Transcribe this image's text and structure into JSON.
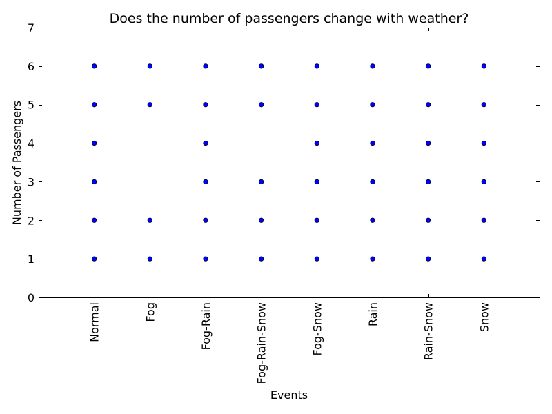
{
  "chart_data": {
    "type": "scatter",
    "title": "Does the number of passengers change with weather?",
    "xlabel": "Events",
    "ylabel": "Number of Passengers",
    "categories": [
      "Normal",
      "Fog",
      "Fog-Rain",
      "Fog-Rain-Snow",
      "Fog-Snow",
      "Rain",
      "Rain-Snow",
      "Snow"
    ],
    "x_range_slots": [
      0,
      9
    ],
    "ylim": [
      0,
      7
    ],
    "yticks": [
      0,
      1,
      2,
      3,
      4,
      5,
      6,
      7
    ],
    "grid": false,
    "marker_color": "#0000ff",
    "points": [
      {
        "x": "Normal",
        "y": 1
      },
      {
        "x": "Normal",
        "y": 2
      },
      {
        "x": "Normal",
        "y": 3
      },
      {
        "x": "Normal",
        "y": 4
      },
      {
        "x": "Normal",
        "y": 5
      },
      {
        "x": "Normal",
        "y": 6
      },
      {
        "x": "Fog",
        "y": 1
      },
      {
        "x": "Fog",
        "y": 2
      },
      {
        "x": "Fog",
        "y": 5
      },
      {
        "x": "Fog",
        "y": 6
      },
      {
        "x": "Fog-Rain",
        "y": 1
      },
      {
        "x": "Fog-Rain",
        "y": 2
      },
      {
        "x": "Fog-Rain",
        "y": 3
      },
      {
        "x": "Fog-Rain",
        "y": 4
      },
      {
        "x": "Fog-Rain",
        "y": 5
      },
      {
        "x": "Fog-Rain",
        "y": 6
      },
      {
        "x": "Fog-Rain-Snow",
        "y": 1
      },
      {
        "x": "Fog-Rain-Snow",
        "y": 2
      },
      {
        "x": "Fog-Rain-Snow",
        "y": 3
      },
      {
        "x": "Fog-Rain-Snow",
        "y": 5
      },
      {
        "x": "Fog-Rain-Snow",
        "y": 6
      },
      {
        "x": "Fog-Snow",
        "y": 1
      },
      {
        "x": "Fog-Snow",
        "y": 2
      },
      {
        "x": "Fog-Snow",
        "y": 3
      },
      {
        "x": "Fog-Snow",
        "y": 4
      },
      {
        "x": "Fog-Snow",
        "y": 5
      },
      {
        "x": "Fog-Snow",
        "y": 6
      },
      {
        "x": "Rain",
        "y": 1
      },
      {
        "x": "Rain",
        "y": 2
      },
      {
        "x": "Rain",
        "y": 3
      },
      {
        "x": "Rain",
        "y": 4
      },
      {
        "x": "Rain",
        "y": 5
      },
      {
        "x": "Rain",
        "y": 6
      },
      {
        "x": "Rain-Snow",
        "y": 1
      },
      {
        "x": "Rain-Snow",
        "y": 2
      },
      {
        "x": "Rain-Snow",
        "y": 3
      },
      {
        "x": "Rain-Snow",
        "y": 4
      },
      {
        "x": "Rain-Snow",
        "y": 5
      },
      {
        "x": "Rain-Snow",
        "y": 6
      },
      {
        "x": "Snow",
        "y": 1
      },
      {
        "x": "Snow",
        "y": 2
      },
      {
        "x": "Snow",
        "y": 3
      },
      {
        "x": "Snow",
        "y": 4
      },
      {
        "x": "Snow",
        "y": 5
      },
      {
        "x": "Snow",
        "y": 6
      }
    ]
  }
}
